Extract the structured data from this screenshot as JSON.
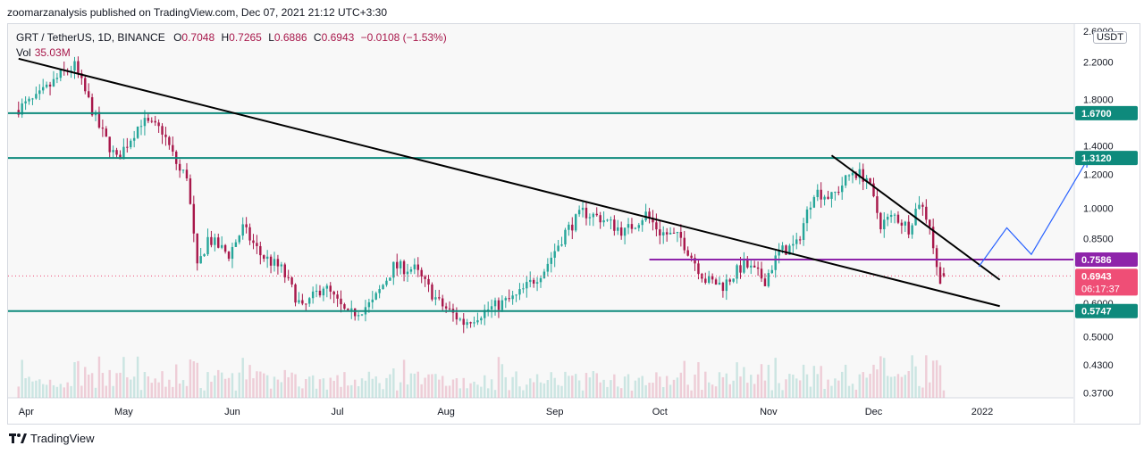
{
  "header": {
    "published": "zoomarzanalysis published on TradingView.com, Dec 07, 2021 21:12 UTC+3:30"
  },
  "legend": {
    "symbol": "GRT / TetherUS, 1D, BINANCE",
    "o_label": "O",
    "o_value": "0.7048",
    "h_label": "H",
    "h_value": "0.7265",
    "l_label": "L",
    "l_value": "0.6886",
    "c_label": "C",
    "c_value": "0.6943",
    "change": "−0.0108 (−1.53%)",
    "vol_label": "Vol",
    "vol_value": "35.03M"
  },
  "currency_badge": "USDT",
  "footer": {
    "brand": "TradingView"
  },
  "colors": {
    "up": "#26a69a",
    "down": "#a8184b",
    "teal_level": "#0e8a7c",
    "purple_level": "#8e24aa",
    "current": "#ef4e76",
    "projection": "#2962ff",
    "trendline": "#000000"
  },
  "chart_data": {
    "type": "candlestick",
    "y_scale": "log",
    "y_ticks": [
      "2.6000",
      "2.2000",
      "1.8000",
      "1.4000",
      "1.2000",
      "1.0000",
      "0.8500",
      "0.6000",
      "0.5000",
      "0.4300",
      "0.3700"
    ],
    "x_ticks": [
      "Apr",
      "May",
      "Jun",
      "Jul",
      "Aug",
      "Sep",
      "Oct",
      "Nov",
      "Dec",
      "2022"
    ],
    "ylim": [
      0.36,
      2.7
    ],
    "price_path": [
      [
        "2021-04-01",
        1.7
      ],
      [
        "2021-04-07",
        1.8
      ],
      [
        "2021-04-14",
        2.05
      ],
      [
        "2021-04-18",
        2.15
      ],
      [
        "2021-04-25",
        1.55
      ],
      [
        "2021-04-30",
        1.3
      ],
      [
        "2021-05-07",
        1.6
      ],
      [
        "2021-05-13",
        1.52
      ],
      [
        "2021-05-18",
        1.22
      ],
      [
        "2021-05-20",
        1.2
      ],
      [
        "2021-05-23",
        0.72
      ],
      [
        "2021-05-26",
        0.85
      ],
      [
        "2021-06-01",
        0.78
      ],
      [
        "2021-06-05",
        0.9
      ],
      [
        "2021-06-10",
        0.78
      ],
      [
        "2021-06-16",
        0.72
      ],
      [
        "2021-06-22",
        0.58
      ],
      [
        "2021-06-28",
        0.66
      ],
      [
        "2021-07-05",
        0.56
      ],
      [
        "2021-07-12",
        0.6
      ],
      [
        "2021-07-18",
        0.73
      ],
      [
        "2021-07-24",
        0.72
      ],
      [
        "2021-07-31",
        0.6
      ],
      [
        "2021-08-07",
        0.54
      ],
      [
        "2021-08-14",
        0.58
      ],
      [
        "2021-08-22",
        0.62
      ],
      [
        "2021-08-30",
        0.72
      ],
      [
        "2021-09-05",
        0.88
      ],
      [
        "2021-09-10",
        0.98
      ],
      [
        "2021-09-15",
        0.95
      ],
      [
        "2021-09-22",
        0.88
      ],
      [
        "2021-09-28",
        0.97
      ],
      [
        "2021-10-02",
        0.88
      ],
      [
        "2021-10-08",
        0.85
      ],
      [
        "2021-10-15",
        0.68
      ],
      [
        "2021-10-20",
        0.66
      ],
      [
        "2021-10-26",
        0.74
      ],
      [
        "2021-11-01",
        0.68
      ],
      [
        "2021-11-05",
        0.79
      ],
      [
        "2021-11-10",
        0.82
      ],
      [
        "2021-11-15",
        1.1
      ],
      [
        "2021-11-20",
        1.06
      ],
      [
        "2021-11-26",
        1.22
      ],
      [
        "2021-11-30",
        1.18
      ],
      [
        "2021-12-04",
        0.92
      ],
      [
        "2021-12-08",
        0.96
      ],
      [
        "2021-12-12",
        0.9
      ],
      [
        "2021-12-15",
        1.04
      ],
      [
        "2021-12-18",
        0.92
      ],
      [
        "2021-12-20",
        0.72
      ],
      [
        "2021-12-21",
        0.69
      ]
    ],
    "horizontal_levels": [
      {
        "label": "1.6700",
        "value": 1.67,
        "color": "teal"
      },
      {
        "label": "1.3120",
        "value": 1.312,
        "color": "teal"
      },
      {
        "label": "0.7586",
        "value": 0.7586,
        "color": "purple"
      },
      {
        "label": "0.5747",
        "value": 0.5747,
        "color": "teal"
      }
    ],
    "last_price": {
      "label": "0.6943",
      "value": 0.6943,
      "countdown": "06:17:37"
    },
    "trendlines": [
      {
        "from": [
          "2021-04-01",
          2.24
        ],
        "to": [
          "2022-01-06",
          0.59
        ]
      },
      {
        "from": [
          "2021-11-19",
          1.33
        ],
        "to": [
          "2022-01-06",
          0.68
        ]
      }
    ],
    "projection_path": [
      [
        "2021-12-31",
        0.73
      ],
      [
        "2022-01-08",
        0.9
      ],
      [
        "2022-01-15",
        0.78
      ],
      [
        "2022-01-31",
        1.3
      ]
    ],
    "candles": [
      {
        "date": "2021-12-21",
        "o": 0.7048,
        "h": 0.7265,
        "l": 0.6886,
        "c": 0.6943
      }
    ]
  }
}
